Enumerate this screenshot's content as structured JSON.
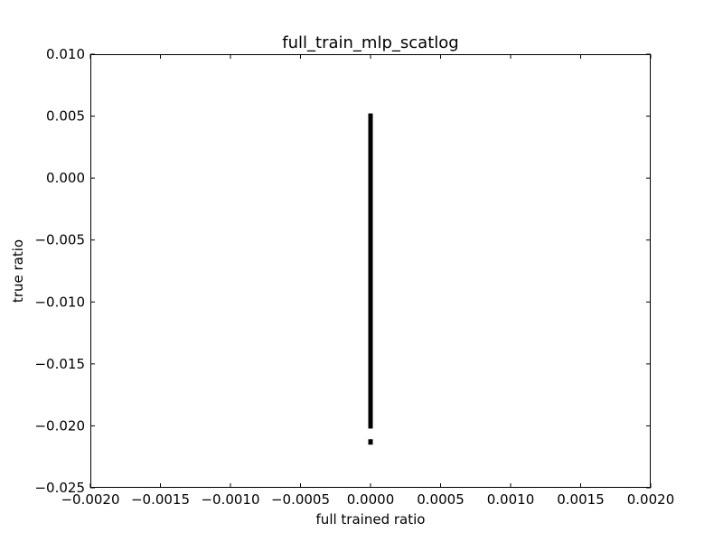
{
  "chart_data": {
    "type": "scatter",
    "title": "full_train_mlp_scatlog",
    "xlabel": "full trained ratio",
    "ylabel": "true ratio",
    "xlim": [
      -0.002,
      0.002
    ],
    "ylim": [
      -0.025,
      0.01
    ],
    "x_ticks": [
      -0.002,
      -0.0015,
      -0.001,
      -0.0005,
      0.0,
      0.0005,
      0.001,
      0.0015,
      0.002
    ],
    "x_tick_labels": [
      "−0.0020",
      "−0.0015",
      "−0.0010",
      "−0.0005",
      "0.0000",
      "0.0005",
      "0.0010",
      "0.0015",
      "0.0020"
    ],
    "y_ticks": [
      0.01,
      0.005,
      0.0,
      -0.005,
      -0.01,
      -0.015,
      -0.02,
      -0.025
    ],
    "y_tick_labels": [
      "0.010",
      "0.005",
      "0.000",
      "−0.005",
      "−0.010",
      "−0.015",
      "−0.020",
      "−0.025"
    ],
    "grid": false,
    "marker_color": "#000000",
    "series": [
      {
        "x": [
          0,
          0,
          0,
          0,
          0,
          0,
          0,
          0,
          0,
          0,
          0,
          0,
          0,
          0,
          0,
          0,
          0,
          0,
          0,
          0,
          0,
          0,
          0,
          0,
          0,
          0,
          0,
          0,
          0,
          0,
          0,
          0,
          0,
          0,
          0,
          0,
          0,
          0,
          0,
          0,
          0,
          0,
          0,
          0,
          0,
          0,
          0,
          0,
          0,
          0,
          0,
          0,
          0,
          0,
          0,
          0,
          0,
          0,
          0,
          0,
          0,
          0,
          0,
          0,
          0,
          0,
          0,
          0,
          0,
          0,
          0,
          0,
          0,
          0,
          0,
          0,
          0,
          0,
          0,
          0,
          0,
          0,
          0,
          0,
          0,
          0,
          0,
          0,
          0,
          0,
          0,
          0,
          0,
          0,
          0,
          0,
          0,
          0,
          0,
          0,
          0,
          0,
          0,
          0,
          0,
          0,
          0,
          0,
          0,
          0,
          0,
          0,
          0,
          0,
          0,
          0,
          0,
          0,
          0,
          0,
          0,
          0,
          0,
          0,
          0,
          0,
          0
        ],
        "y": [
          0.005,
          0.0048,
          0.0046,
          0.0044,
          0.0042,
          0.004,
          0.0038,
          0.0036,
          0.0034,
          0.0032,
          0.003,
          0.0028,
          0.0026,
          0.0024,
          0.0022,
          0.002,
          0.0018,
          0.0016,
          0.0014,
          0.0012,
          0.001,
          0.0008,
          0.0006,
          0.0004,
          0.0002,
          0.0,
          -0.0002,
          -0.0004,
          -0.0006,
          -0.0008,
          -0.001,
          -0.0012,
          -0.0014,
          -0.0016,
          -0.0018,
          -0.002,
          -0.0022,
          -0.0024,
          -0.0026,
          -0.0028,
          -0.003,
          -0.0032,
          -0.0034,
          -0.0036,
          -0.0038,
          -0.004,
          -0.0042,
          -0.0044,
          -0.0046,
          -0.0048,
          -0.005,
          -0.0052,
          -0.0054,
          -0.0056,
          -0.0058,
          -0.006,
          -0.0062,
          -0.0064,
          -0.0066,
          -0.0068,
          -0.007,
          -0.0072,
          -0.0074,
          -0.0076,
          -0.0078,
          -0.008,
          -0.0082,
          -0.0084,
          -0.0086,
          -0.0088,
          -0.009,
          -0.0092,
          -0.0094,
          -0.0096,
          -0.0098,
          -0.01,
          -0.0102,
          -0.0104,
          -0.0106,
          -0.0108,
          -0.011,
          -0.0112,
          -0.0114,
          -0.0116,
          -0.0118,
          -0.012,
          -0.0122,
          -0.0124,
          -0.0126,
          -0.0128,
          -0.013,
          -0.0132,
          -0.0134,
          -0.0136,
          -0.0138,
          -0.014,
          -0.0142,
          -0.0144,
          -0.0146,
          -0.0148,
          -0.015,
          -0.0152,
          -0.0154,
          -0.0156,
          -0.0158,
          -0.016,
          -0.0162,
          -0.0164,
          -0.0166,
          -0.0168,
          -0.017,
          -0.0172,
          -0.0174,
          -0.0176,
          -0.0178,
          -0.018,
          -0.0182,
          -0.0184,
          -0.0186,
          -0.0188,
          -0.019,
          -0.0192,
          -0.0194,
          -0.0196,
          -0.0198,
          -0.02,
          -0.0213
        ]
      }
    ]
  }
}
